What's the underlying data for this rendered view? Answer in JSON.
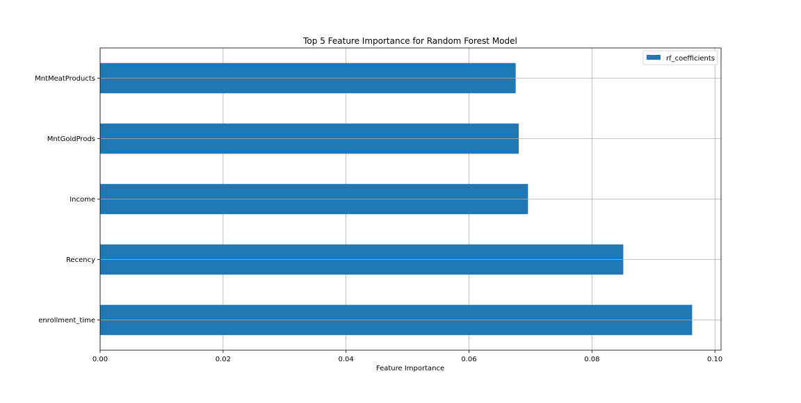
{
  "chart_data": {
    "type": "bar",
    "orientation": "horizontal",
    "title": "Top 5 Feature Importance for Random Forest Model",
    "xlabel": "Feature Importance",
    "ylabel": "",
    "categories": [
      "MntMeatProducts",
      "MntGoldProds",
      "Income",
      "Recency",
      "enrollment_time"
    ],
    "series": [
      {
        "name": "rf_coefficients",
        "values": [
          0.0676,
          0.0681,
          0.0696,
          0.0851,
          0.0963
        ]
      }
    ],
    "xlim": [
      0.0,
      0.101
    ],
    "xticks": [
      "0.00",
      "0.02",
      "0.04",
      "0.06",
      "0.08",
      "0.10"
    ],
    "grid": true,
    "legend_position": "top-right",
    "colors": {
      "bar": "#1f77b4",
      "grid": "#b0b0b0",
      "axis": "#000000"
    }
  }
}
